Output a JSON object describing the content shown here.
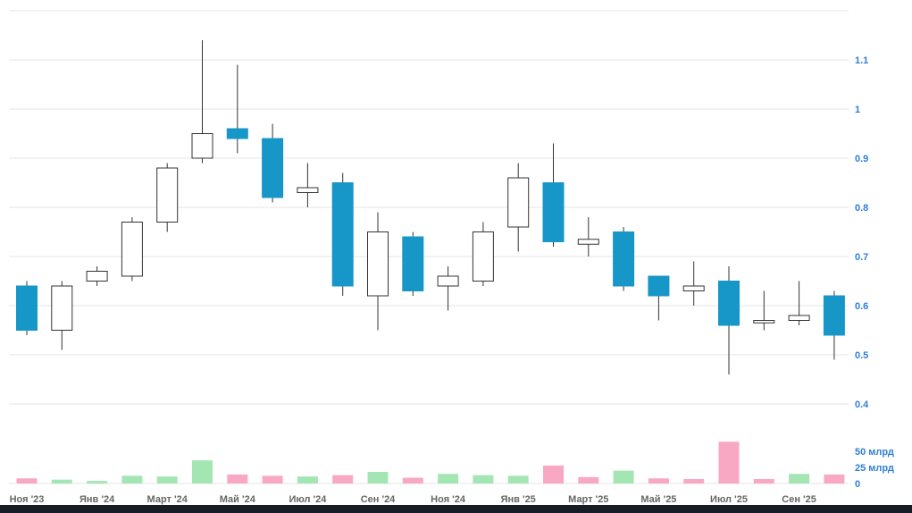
{
  "chart_data": {
    "type": "candlestick",
    "title": "",
    "grid": true,
    "legend": "none",
    "price_axis": {
      "position": "right",
      "range": [
        0.37,
        1.2
      ],
      "ticks": [
        0.4,
        0.5,
        0.6,
        0.7,
        0.8,
        0.9,
        1,
        1.1
      ]
    },
    "volume_axis": {
      "position": "right",
      "ticks": [
        {
          "value": 50,
          "label": "50 млрд"
        },
        {
          "value": 25,
          "label": "25 млрд"
        },
        {
          "value": 0,
          "label": "0"
        }
      ]
    },
    "x_tick_labels": [
      "Ноя '23",
      "Янв '24",
      "Март '24",
      "Май '24",
      "Июл '24",
      "Сен '24",
      "Ноя '24",
      "Янв '25",
      "Март '25",
      "Май '25",
      "Июл '25",
      "Сен '25"
    ],
    "candles": [
      {
        "month": "Ноя '23",
        "open": 0.64,
        "high": 0.65,
        "low": 0.54,
        "close": 0.55,
        "volume": 8,
        "vol_dir": "down"
      },
      {
        "month": "Дек '23",
        "open": 0.55,
        "high": 0.65,
        "low": 0.51,
        "close": 0.64,
        "volume": 6,
        "vol_dir": "up"
      },
      {
        "month": "Янв '24",
        "open": 0.65,
        "high": 0.68,
        "low": 0.64,
        "close": 0.67,
        "volume": 4,
        "vol_dir": "up"
      },
      {
        "month": "Фев '24",
        "open": 0.66,
        "high": 0.78,
        "low": 0.65,
        "close": 0.77,
        "volume": 12,
        "vol_dir": "up"
      },
      {
        "month": "Март '24",
        "open": 0.77,
        "high": 0.89,
        "low": 0.75,
        "close": 0.88,
        "volume": 11,
        "vol_dir": "up"
      },
      {
        "month": "Апр '24",
        "open": 0.9,
        "high": 1.14,
        "low": 0.89,
        "close": 0.95,
        "volume": 36,
        "vol_dir": "up"
      },
      {
        "month": "Май '24",
        "open": 0.96,
        "high": 1.09,
        "low": 0.91,
        "close": 0.94,
        "volume": 14,
        "vol_dir": "down"
      },
      {
        "month": "Июнь '24",
        "open": 0.94,
        "high": 0.97,
        "low": 0.81,
        "close": 0.82,
        "volume": 12,
        "vol_dir": "down"
      },
      {
        "month": "Июл '24",
        "open": 0.83,
        "high": 0.89,
        "low": 0.8,
        "close": 0.84,
        "volume": 11,
        "vol_dir": "up"
      },
      {
        "month": "Авг '24",
        "open": 0.85,
        "high": 0.87,
        "low": 0.62,
        "close": 0.64,
        "volume": 13,
        "vol_dir": "down"
      },
      {
        "month": "Сен '24",
        "open": 0.62,
        "high": 0.79,
        "low": 0.55,
        "close": 0.75,
        "volume": 18,
        "vol_dir": "up"
      },
      {
        "month": "Окт '24",
        "open": 0.74,
        "high": 0.75,
        "low": 0.62,
        "close": 0.63,
        "volume": 9,
        "vol_dir": "down"
      },
      {
        "month": "Ноя '24",
        "open": 0.64,
        "high": 0.68,
        "low": 0.59,
        "close": 0.66,
        "volume": 15,
        "vol_dir": "up"
      },
      {
        "month": "Дек '24",
        "open": 0.65,
        "high": 0.77,
        "low": 0.64,
        "close": 0.75,
        "volume": 13,
        "vol_dir": "up"
      },
      {
        "month": "Янв '25",
        "open": 0.76,
        "high": 0.89,
        "low": 0.71,
        "close": 0.86,
        "volume": 12,
        "vol_dir": "up"
      },
      {
        "month": "Фев '25",
        "open": 0.85,
        "high": 0.93,
        "low": 0.72,
        "close": 0.73,
        "volume": 28,
        "vol_dir": "down"
      },
      {
        "month": "Март '25",
        "open": 0.725,
        "high": 0.78,
        "low": 0.7,
        "close": 0.735,
        "volume": 10,
        "vol_dir": "down"
      },
      {
        "month": "Апр '25",
        "open": 0.75,
        "high": 0.76,
        "low": 0.63,
        "close": 0.64,
        "volume": 20,
        "vol_dir": "up"
      },
      {
        "month": "Май '25",
        "open": 0.66,
        "high": 0.66,
        "low": 0.57,
        "close": 0.62,
        "volume": 8,
        "vol_dir": "down"
      },
      {
        "month": "Июнь '25",
        "open": 0.63,
        "high": 0.69,
        "low": 0.6,
        "close": 0.64,
        "volume": 7,
        "vol_dir": "down"
      },
      {
        "month": "Июл '25",
        "open": 0.65,
        "high": 0.68,
        "low": 0.46,
        "close": 0.56,
        "volume": 65,
        "vol_dir": "down"
      },
      {
        "month": "Авг '25",
        "open": 0.565,
        "high": 0.63,
        "low": 0.55,
        "close": 0.57,
        "volume": 7,
        "vol_dir": "down"
      },
      {
        "month": "Сен '25",
        "open": 0.57,
        "high": 0.65,
        "low": 0.56,
        "close": 0.58,
        "volume": 15,
        "vol_dir": "up"
      },
      {
        "month": "Окт '25",
        "open": 0.62,
        "high": 0.63,
        "low": 0.49,
        "close": 0.54,
        "volume": 14,
        "vol_dir": "down"
      }
    ],
    "colors": {
      "up_candle": "#ffffff",
      "down_candle": "#1796c8",
      "wick": "#333333",
      "volume_up": "#a3e6b4",
      "volume_down": "#f9a8c3",
      "grid": "#e6e6e6",
      "axis_label": "#2f7ed8",
      "x_label": "#666666",
      "bottom_bar": "#161d27",
      "background": "#ffffff"
    }
  }
}
